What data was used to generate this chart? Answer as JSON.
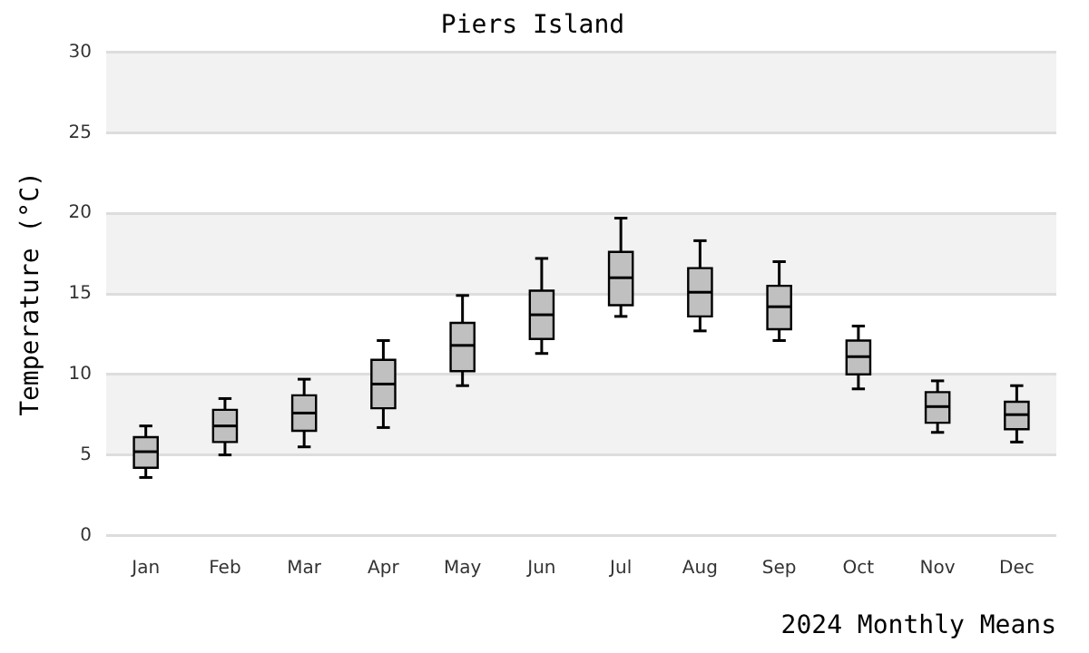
{
  "chart_data": {
    "type": "box",
    "title": "Piers Island",
    "xlabel": "2024 Monthly Means",
    "ylabel": "Temperature (°C)",
    "categories": [
      "Jan",
      "Feb",
      "Mar",
      "Apr",
      "May",
      "Jun",
      "Jul",
      "Aug",
      "Sep",
      "Oct",
      "Nov",
      "Dec"
    ],
    "boxes": [
      {
        "low": 3.6,
        "q1": 4.2,
        "median": 5.2,
        "q3": 6.1,
        "high": 6.8
      },
      {
        "low": 5.0,
        "q1": 5.8,
        "median": 6.8,
        "q3": 7.8,
        "high": 8.5
      },
      {
        "low": 5.5,
        "q1": 6.5,
        "median": 7.6,
        "q3": 8.7,
        "high": 9.7
      },
      {
        "low": 6.7,
        "q1": 7.9,
        "median": 9.4,
        "q3": 10.9,
        "high": 12.1
      },
      {
        "low": 9.3,
        "q1": 10.2,
        "median": 11.8,
        "q3": 13.2,
        "high": 14.9
      },
      {
        "low": 11.3,
        "q1": 12.2,
        "median": 13.7,
        "q3": 15.2,
        "high": 17.2
      },
      {
        "low": 13.6,
        "q1": 14.3,
        "median": 16.0,
        "q3": 17.6,
        "high": 19.7
      },
      {
        "low": 12.7,
        "q1": 13.6,
        "median": 15.1,
        "q3": 16.6,
        "high": 18.3
      },
      {
        "low": 12.1,
        "q1": 12.8,
        "median": 14.2,
        "q3": 15.5,
        "high": 17.0
      },
      {
        "low": 9.1,
        "q1": 10.0,
        "median": 11.1,
        "q3": 12.1,
        "high": 13.0
      },
      {
        "low": 6.4,
        "q1": 7.0,
        "median": 8.0,
        "q3": 8.9,
        "high": 9.6
      },
      {
        "low": 5.8,
        "q1": 6.6,
        "median": 7.5,
        "q3": 8.3,
        "high": 9.3
      }
    ],
    "color": "#c0c0c0",
    "ylim": [
      0,
      30
    ],
    "yticks": [
      0,
      5,
      10,
      15,
      20,
      25,
      30
    ],
    "grid": "y"
  }
}
